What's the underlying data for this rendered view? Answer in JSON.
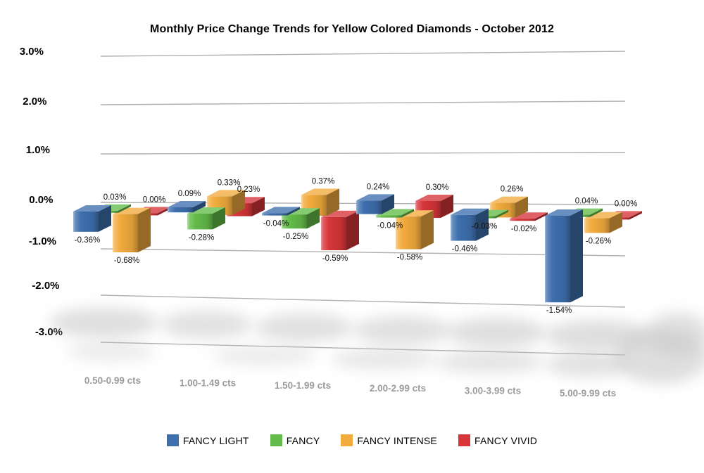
{
  "chart_data": {
    "type": "bar",
    "style": "3d-clustered-column",
    "title": "Monthly Price Change Trends for Yellow Colored Diamonds - October 2012",
    "categories": [
      "0.50-0.99 cts",
      "1.00-1.49 cts",
      "1.50-1.99 cts",
      "2.00-2.99 cts",
      "3.00-3.99 cts",
      "5.00-9.99 cts"
    ],
    "series": [
      {
        "name": "FANCY LIGHT",
        "color": "#3E6FAD",
        "values": [
          -0.36,
          0.09,
          -0.04,
          0.24,
          -0.46,
          -1.54
        ]
      },
      {
        "name": "FANCY",
        "color": "#63BC49",
        "values": [
          0.03,
          -0.28,
          -0.25,
          -0.04,
          -0.03,
          0.04
        ]
      },
      {
        "name": "FANCY INTENSE",
        "color": "#F2AB3D",
        "values": [
          -0.68,
          0.33,
          0.37,
          -0.58,
          0.26,
          -0.26
        ]
      },
      {
        "name": "FANCY VIVID",
        "color": "#D73539",
        "values": [
          0.0,
          0.23,
          -0.59,
          0.3,
          -0.02,
          0.0
        ]
      }
    ],
    "value_labels": [
      [
        "-0.36%",
        "0.09%",
        "-0.04%",
        "0.24%",
        "-0.46%",
        "-1.54%"
      ],
      [
        "0.03%",
        "-0.28%",
        "-0.25%",
        "-0.04%",
        "-0.03%",
        "0.04%"
      ],
      [
        "-0.68%",
        "0.33%",
        "0.37%",
        "-0.58%",
        "0.26%",
        "-0.26%"
      ],
      [
        "0.00%",
        "0.23%",
        "-0.59%",
        "0.30%",
        "-0.02%",
        "0.00%"
      ]
    ],
    "yticks": [
      "3.0%",
      "2.0%",
      "1.0%",
      "0.0%",
      "-1.0%",
      "-2.0%",
      "-3.0%"
    ],
    "ylim": [
      -3.0,
      3.0
    ],
    "grid": true,
    "legend_position": "bottom",
    "axis_label_color": "#000000",
    "category_label_color": "#9b9b9b",
    "gridline_color": "#b0b0b0"
  }
}
